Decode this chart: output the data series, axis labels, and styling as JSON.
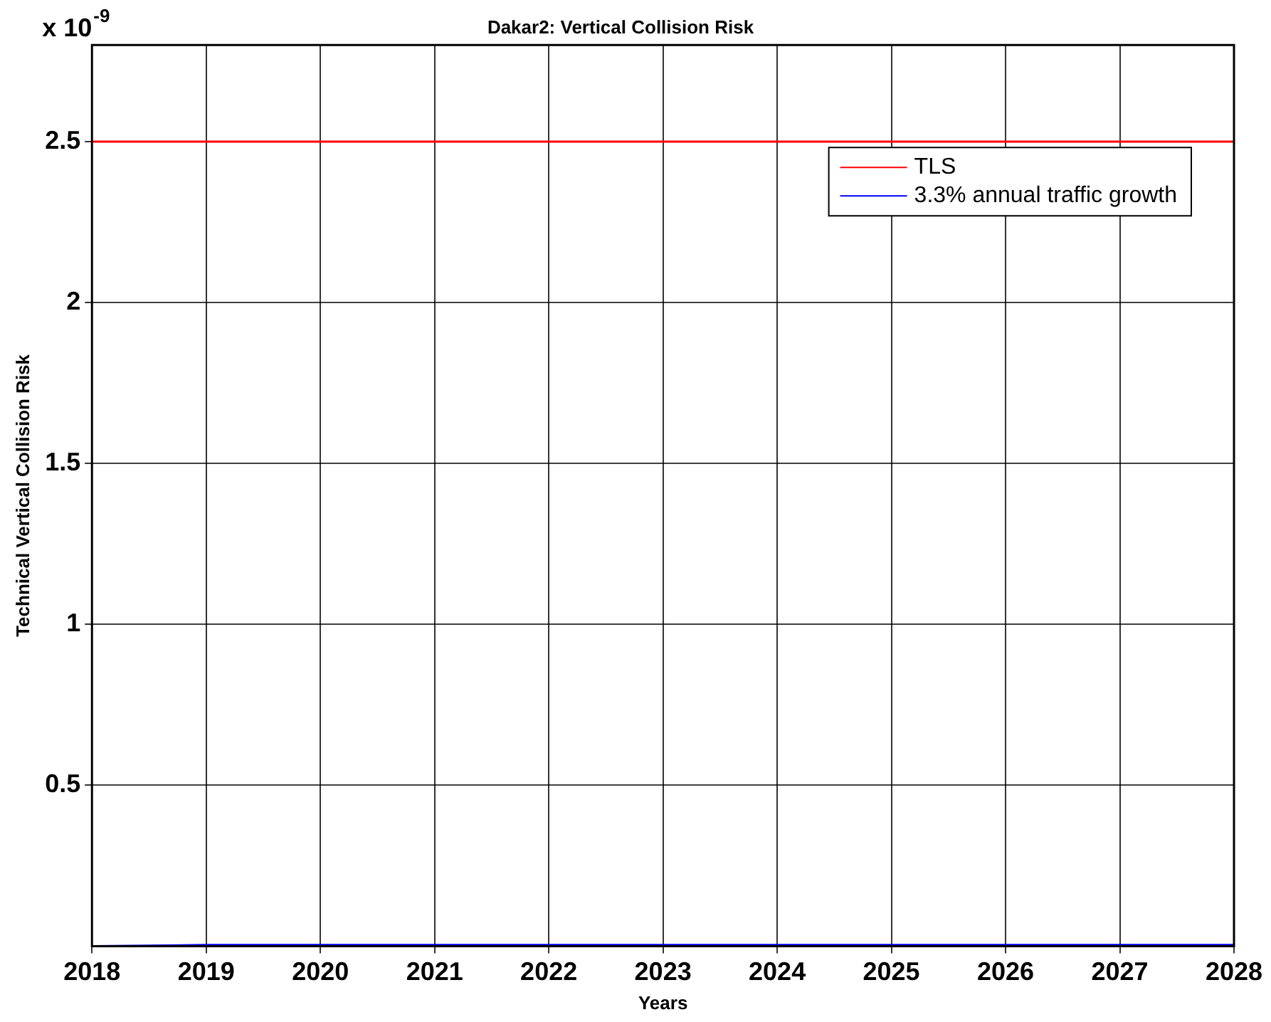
{
  "chart_data": {
    "type": "line",
    "title": "Dakar2: Vertical Collision Risk",
    "xlabel": "Years",
    "ylabel": "Technical Vertical Collision Risk",
    "annotations": [
      "x 10$^{-9}$"
    ],
    "x": [
      2018,
      2019,
      2020,
      2021,
      2022,
      2023,
      2024,
      2025,
      2026,
      2027,
      2028
    ],
    "series": [
      {
        "name": "TLS",
        "color": "#ff0000",
        "values": [
          2.5,
          2.5,
          2.5,
          2.5,
          2.5,
          2.5,
          2.5,
          2.5,
          2.5,
          2.5,
          2.5
        ]
      },
      {
        "name": "3.3% annual traffic growth",
        "color": "#0000ff",
        "values": [
          0,
          0.004,
          0.004,
          0.004,
          0.004,
          0.004,
          0.004,
          0.004,
          0.004,
          0.004,
          0.004
        ]
      }
    ],
    "xlim": [
      2018,
      2028
    ],
    "xticks": [
      2018,
      2019,
      2020,
      2021,
      2022,
      2023,
      2024,
      2025,
      2026,
      2027,
      2028
    ],
    "ylim": [
      0,
      2.8
    ],
    "yticks": [
      0.5,
      1,
      1.5,
      2,
      2.5
    ],
    "grid": true,
    "legend": "top right",
    "marker": "none",
    "line_style": "solid"
  }
}
